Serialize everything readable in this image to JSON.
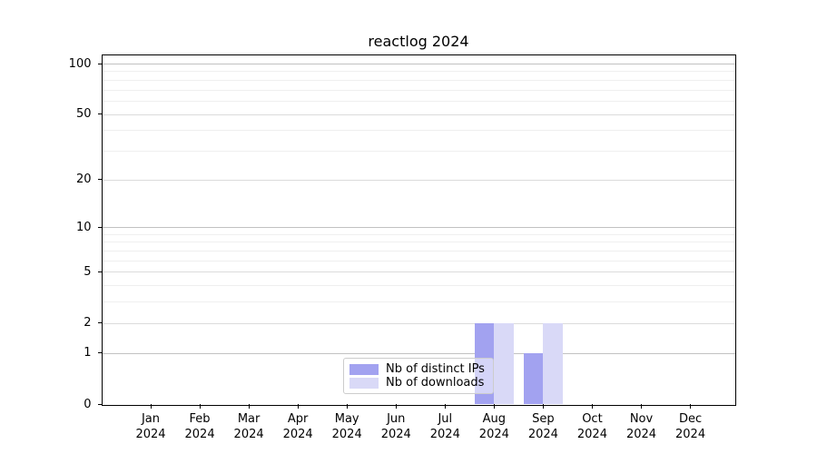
{
  "figure": {
    "title": "reactlog 2024"
  },
  "chart_data": {
    "type": "bar",
    "title": "reactlog 2024",
    "categories": [
      "Jan 2024",
      "Feb 2024",
      "Mar 2024",
      "Apr 2024",
      "May 2024",
      "Jun 2024",
      "Jul 2024",
      "Aug 2024",
      "Sep 2024",
      "Oct 2024",
      "Nov 2024",
      "Dec 2024"
    ],
    "x_tick_month": [
      "Jan",
      "Feb",
      "Mar",
      "Apr",
      "May",
      "Jun",
      "Jul",
      "Aug",
      "Sep",
      "Oct",
      "Nov",
      "Dec"
    ],
    "x_tick_year": "2024",
    "series": [
      {
        "name": "Nb of distinct IPs",
        "color": "#a2a2f0",
        "values": [
          0,
          0,
          0,
          0,
          0,
          0,
          0,
          2,
          1,
          0,
          0,
          0
        ]
      },
      {
        "name": "Nb of downloads",
        "color": "#d9d9f7",
        "values": [
          0,
          0,
          0,
          0,
          0,
          0,
          0,
          2,
          2,
          0,
          0,
          0
        ]
      }
    ],
    "xlabel": "",
    "ylabel": "",
    "y_scale": "log1p",
    "ylim": [
      0,
      113
    ],
    "y_major_ticks": [
      0,
      1,
      2,
      5,
      10,
      20,
      50,
      100
    ],
    "y_minor_gridlines": [
      3,
      4,
      6,
      7,
      8,
      9,
      30,
      40,
      60,
      70,
      80,
      90
    ],
    "grid": "horizontal",
    "legend_position": "inside-bottom-center",
    "colors": {
      "decade_gridline": "#c2c2c2",
      "major_gridline": "#dbdbdb",
      "minor_gridline": "#efefef",
      "axis_spine": "#000000",
      "background": "#ffffff"
    }
  }
}
